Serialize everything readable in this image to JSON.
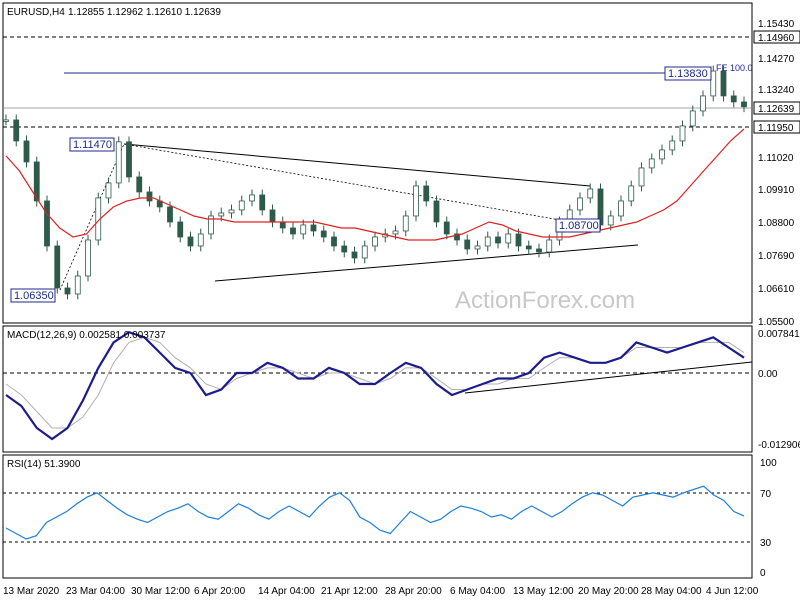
{
  "header": {
    "symbol": "EURUSD,H4",
    "ohlc": "1.12855 1.12962 1.12610 1.12639"
  },
  "watermark": "ActionForex.com",
  "colors": {
    "candle": "#2e5a4a",
    "ma": "#e02020",
    "macd": "#1c1c8c",
    "signal": "#b0b0b0",
    "rsi": "#1e7fd8",
    "level_line": "#1f2a8a",
    "trendline": "#000000"
  },
  "price_panel": {
    "y_ticks": [
      "1.15430",
      "1.14960",
      "1.14270",
      "1.13240",
      "1.12639",
      "1.11950",
      "1.11020",
      "1.09910",
      "1.08800",
      "1.07690",
      "1.06610",
      "1.05500"
    ],
    "price_tag": "1.12639",
    "dashed_levels": [
      "1.14960",
      "1.11950"
    ],
    "labels": {
      "low_mar": "1.06350",
      "high_mar": "1.11470",
      "low_may": "1.08700",
      "high_jun": "1.13830",
      "fe": "FE 100.0"
    }
  },
  "macd_panel": {
    "title": "MACD(12,26,9) 0.002581 0.003737",
    "y_ticks": [
      "0.007841",
      "0.00",
      "-0.012906"
    ]
  },
  "rsi_panel": {
    "title": "RSI(14) 51.3900",
    "y_ticks": [
      "100",
      "70",
      "30",
      "0"
    ]
  },
  "x_axis": {
    "labels": [
      "13 Mar 2020",
      "23 Mar 04:00",
      "30 Mar 12:00",
      "6 Apr 20:00",
      "14 Apr 04:00",
      "21 Apr 12:00",
      "28 Apr 20:00",
      "6 May 04:00",
      "13 May 12:00",
      "20 May 20:00",
      "28 May 04:00",
      "4 Jun 12:00"
    ]
  },
  "chart_data": {
    "type": "line",
    "title": "EURUSD,H4",
    "x_label_dates": [
      "13 Mar 2020",
      "23 Mar 04:00",
      "30 Mar 12:00",
      "6 Apr 20:00",
      "14 Apr 04:00",
      "21 Apr 12:00",
      "28 Apr 20:00",
      "6 May 04:00",
      "13 May 12:00",
      "20 May 20:00",
      "28 May 04:00",
      "4 Jun 12:00"
    ],
    "close_series": [
      1.122,
      1.115,
      1.108,
      1.095,
      1.08,
      1.066,
      1.064,
      1.07,
      1.082,
      1.096,
      1.101,
      1.1147,
      1.103,
      1.098,
      1.095,
      1.093,
      1.088,
      1.083,
      1.08,
      1.084,
      1.09,
      1.091,
      1.092,
      1.095,
      1.097,
      1.092,
      1.088,
      1.086,
      1.084,
      1.087,
      1.085,
      1.083,
      1.08,
      1.078,
      1.076,
      1.08,
      1.083,
      1.084,
      1.085,
      1.09,
      1.1,
      1.095,
      1.088,
      1.084,
      1.082,
      1.079,
      1.08,
      1.083,
      1.081,
      1.084,
      1.08,
      1.079,
      1.078,
      1.082,
      1.088,
      1.092,
      1.096,
      1.099,
      1.087,
      1.09,
      1.095,
      1.1,
      1.106,
      1.109,
      1.112,
      1.115,
      1.12,
      1.125,
      1.13,
      1.1383,
      1.13,
      1.128,
      1.1264
    ],
    "ma_series": [
      1.11,
      1.105,
      1.098,
      1.091,
      1.086,
      1.083,
      1.084,
      1.089,
      1.093,
      1.095,
      1.096,
      1.096,
      1.094,
      1.092,
      1.09,
      1.089,
      1.089,
      1.088,
      1.088,
      1.088,
      1.088,
      1.088,
      1.088,
      1.088,
      1.087,
      1.086,
      1.086,
      1.085,
      1.084,
      1.083,
      1.082,
      1.082,
      1.082,
      1.083,
      1.084,
      1.086,
      1.088,
      1.087,
      1.085,
      1.084,
      1.083,
      1.083,
      1.083,
      1.084,
      1.085,
      1.086,
      1.087,
      1.088,
      1.09,
      1.092,
      1.095,
      1.1,
      1.105,
      1.11,
      1.115,
      1.119
    ],
    "macd_series": [
      -0.004,
      -0.006,
      -0.01,
      -0.012,
      -0.01,
      -0.005,
      0.001,
      0.006,
      0.008,
      0.007,
      0.004,
      0.001,
      0.0,
      -0.004,
      -0.003,
      0.0,
      0.0,
      0.002,
      0.001,
      -0.001,
      -0.001,
      0.001,
      0.0,
      -0.002,
      -0.002,
      0.0,
      0.002,
      0.001,
      -0.002,
      -0.004,
      -0.003,
      -0.002,
      -0.001,
      -0.001,
      0.0,
      0.003,
      0.004,
      0.003,
      0.002,
      0.002,
      0.003,
      0.006,
      0.005,
      0.004,
      0.005,
      0.006,
      0.007,
      0.005,
      0.003
    ],
    "signal_series": [
      -0.002,
      -0.004,
      -0.007,
      -0.01,
      -0.01,
      -0.008,
      -0.004,
      0.002,
      0.006,
      0.007,
      0.006,
      0.003,
      0.001,
      -0.002,
      -0.003,
      -0.001,
      0.0,
      0.001,
      0.001,
      0.0,
      -0.001,
      0.0,
      0.0,
      -0.001,
      -0.002,
      -0.001,
      0.001,
      0.001,
      -0.001,
      -0.003,
      -0.003,
      -0.002,
      -0.002,
      -0.001,
      -0.001,
      0.001,
      0.003,
      0.003,
      0.002,
      0.002,
      0.003,
      0.005,
      0.005,
      0.005,
      0.005,
      0.006,
      0.006,
      0.006,
      0.004
    ],
    "rsi_series": [
      40,
      35,
      30,
      33,
      45,
      50,
      55,
      62,
      68,
      72,
      65,
      58,
      52,
      48,
      45,
      50,
      55,
      58,
      62,
      55,
      50,
      48,
      55,
      62,
      58,
      52,
      48,
      55,
      60,
      55,
      50,
      60,
      68,
      72,
      65,
      50,
      45,
      38,
      35,
      45,
      55,
      50,
      45,
      48,
      55,
      60,
      58,
      55,
      50,
      52,
      48,
      55,
      60,
      55,
      50,
      55,
      62,
      68,
      72,
      70,
      65,
      60,
      68,
      70,
      72,
      70,
      68,
      72,
      75,
      78,
      70,
      65,
      55,
      51
    ]
  }
}
